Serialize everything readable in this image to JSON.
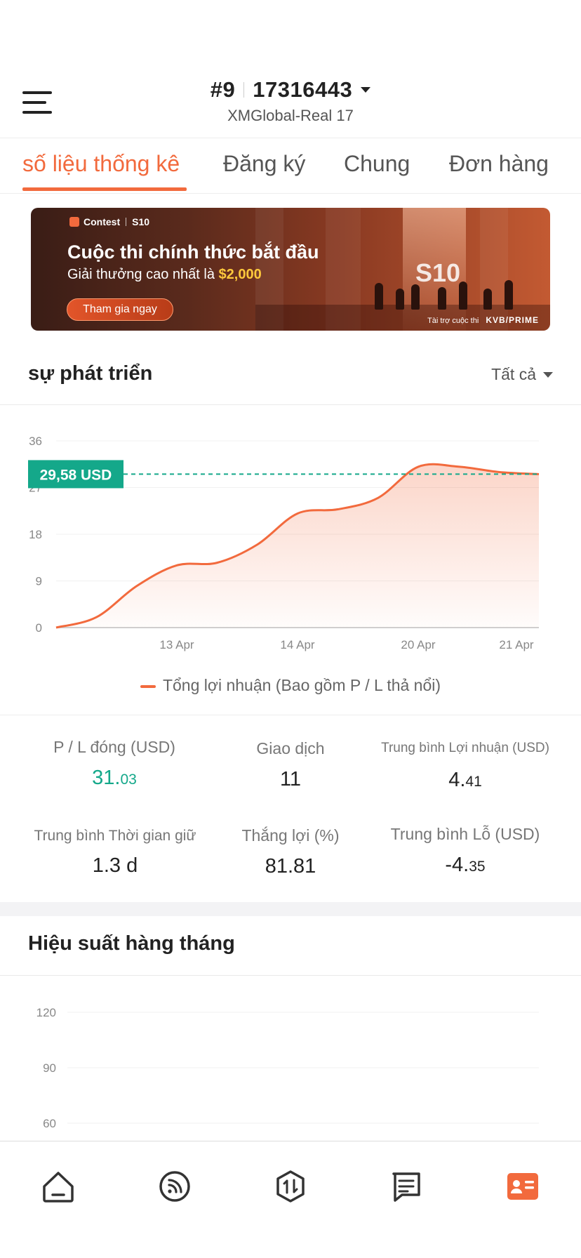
{
  "header": {
    "rank": "#9",
    "account_number": "17316443",
    "server": "XMGlobal-Real 17"
  },
  "tabs": [
    {
      "label": "số liệu thống kê",
      "active": true
    },
    {
      "label": "Đăng ký",
      "active": false
    },
    {
      "label": "Chung",
      "active": false
    },
    {
      "label": "Đơn hàng",
      "active": false
    }
  ],
  "banner": {
    "brand": "Contest",
    "event_tag": "S10",
    "title": "Cuộc thi chính thức bắt đầu",
    "subtitle_prefix": "Giải thưởng cao nhất là ",
    "prize": "$2,000",
    "cta": "Tham gia ngay",
    "big_mark": "S10",
    "sponsor_prefix": "Tài trợ cuộc thi",
    "sponsor": "KVB/PRIME"
  },
  "growth": {
    "title": "sự phát triển",
    "filter": "Tất cả",
    "current_label": "29,58  USD",
    "legend": "Tổng lợi nhuận (Bao gồm P / L thả nổi)"
  },
  "chart_data": [
    {
      "type": "area",
      "title": "sự phát triển",
      "xlabel": "",
      "ylabel": "",
      "ylim": [
        0,
        36
      ],
      "yticks": [
        0,
        9,
        18,
        27,
        36
      ],
      "xtick_labels": [
        "13 Apr",
        "14 Apr",
        "20 Apr",
        "21 Apr"
      ],
      "series": [
        {
          "name": "Tổng lợi nhuận (Bao gồm P / L thả nổi)",
          "values": [
            0,
            2,
            8,
            12,
            12.5,
            16,
            22,
            22.8,
            25,
            31,
            31.03,
            30,
            29.58
          ]
        }
      ],
      "reference_value": 29.58,
      "grid": true,
      "colors": {
        "line": "#f26a3d",
        "reference": "#14a88a"
      }
    },
    {
      "type": "bar",
      "title": "Hiệu suất hàng tháng",
      "ylim": [
        60,
        120
      ],
      "yticks": [
        60,
        90,
        120
      ],
      "grid": true
    }
  ],
  "stats": [
    {
      "label": "P / L đóng (USD)",
      "int": "31.",
      "dec": "03",
      "highlight": true
    },
    {
      "label": "Giao dịch",
      "int": "11",
      "dec": "",
      "highlight": false
    },
    {
      "label": "Trung bình Lợi nhuận (USD)",
      "int": "4.",
      "dec": "41",
      "highlight": false
    },
    {
      "label": "Trung bình Thời gian giữ",
      "int": "1.3 d",
      "dec": "",
      "highlight": false
    },
    {
      "label": "Thắng lợi (%)",
      "int": "81.81",
      "dec": "",
      "highlight": false
    },
    {
      "label": "Trung bình Lỗ (USD)",
      "int": "-4.",
      "dec": "35",
      "highlight": false
    }
  ],
  "monthly": {
    "title": "Hiệu suất hàng tháng"
  },
  "nav": {
    "items": [
      "home-icon",
      "feed-icon",
      "trade-icon",
      "orders-icon",
      "profile-icon"
    ],
    "active": "profile-icon",
    "accent": "#f26a3d"
  }
}
